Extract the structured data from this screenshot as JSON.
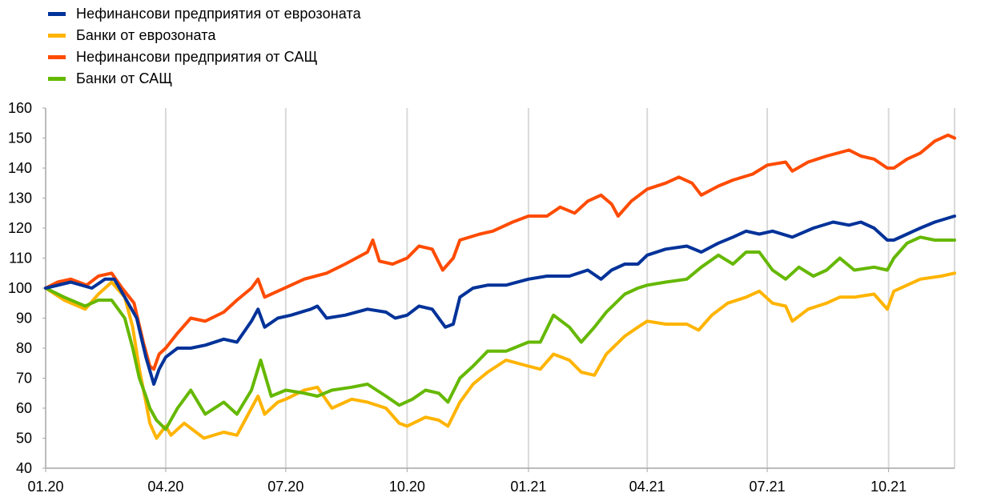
{
  "chart_data": {
    "type": "line",
    "title": "",
    "xlabel": "",
    "ylabel": "",
    "ylim": [
      40,
      160
    ],
    "yticks": [
      40,
      50,
      60,
      70,
      80,
      90,
      100,
      110,
      120,
      130,
      140,
      150,
      160
    ],
    "x_range": [
      "2020-01-01",
      "2021-11-20"
    ],
    "x_ticks": [
      {
        "date": "2020-01-01",
        "label": "01.20"
      },
      {
        "date": "2020-04-01",
        "label": "04.20"
      },
      {
        "date": "2020-07-01",
        "label": "07.20"
      },
      {
        "date": "2020-10-01",
        "label": "10.20"
      },
      {
        "date": "2021-01-01",
        "label": "01.21"
      },
      {
        "date": "2021-04-01",
        "label": "04.21"
      },
      {
        "date": "2021-07-01",
        "label": "07.21"
      },
      {
        "date": "2021-10-01",
        "label": "10.21"
      }
    ],
    "grid": "vertical",
    "legend_position": "top-left",
    "series": [
      {
        "name": "Нефинансови предприятия от еврозоната",
        "color": "#003299",
        "points": [
          [
            "2020-01-01",
            100
          ],
          [
            "2020-01-20",
            102
          ],
          [
            "2020-02-05",
            100
          ],
          [
            "2020-02-15",
            103
          ],
          [
            "2020-02-22",
            103
          ],
          [
            "2020-03-01",
            97
          ],
          [
            "2020-03-10",
            90
          ],
          [
            "2020-03-17",
            77
          ],
          [
            "2020-03-23",
            68
          ],
          [
            "2020-03-27",
            73
          ],
          [
            "2020-04-01",
            77
          ],
          [
            "2020-04-10",
            80
          ],
          [
            "2020-04-20",
            80
          ],
          [
            "2020-05-01",
            81
          ],
          [
            "2020-05-15",
            83
          ],
          [
            "2020-05-25",
            82
          ],
          [
            "2020-06-05",
            89
          ],
          [
            "2020-06-10",
            93
          ],
          [
            "2020-06-15",
            87
          ],
          [
            "2020-06-25",
            90
          ],
          [
            "2020-07-05",
            91
          ],
          [
            "2020-07-20",
            93
          ],
          [
            "2020-07-25",
            94
          ],
          [
            "2020-08-01",
            90
          ],
          [
            "2020-08-15",
            91
          ],
          [
            "2020-09-01",
            93
          ],
          [
            "2020-09-15",
            92
          ],
          [
            "2020-09-22",
            90
          ],
          [
            "2020-10-01",
            91
          ],
          [
            "2020-10-10",
            94
          ],
          [
            "2020-10-20",
            93
          ],
          [
            "2020-10-30",
            87
          ],
          [
            "2020-11-05",
            88
          ],
          [
            "2020-11-10",
            97
          ],
          [
            "2020-11-20",
            100
          ],
          [
            "2020-12-01",
            101
          ],
          [
            "2020-12-15",
            101
          ],
          [
            "2021-01-01",
            103
          ],
          [
            "2021-01-15",
            104
          ],
          [
            "2021-02-01",
            104
          ],
          [
            "2021-02-15",
            106
          ],
          [
            "2021-02-25",
            103
          ],
          [
            "2021-03-05",
            106
          ],
          [
            "2021-03-15",
            108
          ],
          [
            "2021-03-25",
            108
          ],
          [
            "2021-04-01",
            111
          ],
          [
            "2021-04-15",
            113
          ],
          [
            "2021-05-01",
            114
          ],
          [
            "2021-05-12",
            112
          ],
          [
            "2021-05-25",
            115
          ],
          [
            "2021-06-05",
            117
          ],
          [
            "2021-06-15",
            119
          ],
          [
            "2021-06-25",
            118
          ],
          [
            "2021-07-05",
            119
          ],
          [
            "2021-07-20",
            117
          ],
          [
            "2021-08-05",
            120
          ],
          [
            "2021-08-20",
            122
          ],
          [
            "2021-09-01",
            121
          ],
          [
            "2021-09-10",
            122
          ],
          [
            "2021-09-20",
            120
          ],
          [
            "2021-09-30",
            116
          ],
          [
            "2021-10-05",
            116
          ],
          [
            "2021-10-15",
            118
          ],
          [
            "2021-10-25",
            120
          ],
          [
            "2021-11-05",
            122
          ],
          [
            "2021-11-20",
            124
          ]
        ]
      },
      {
        "name": "Банки от еврозоната",
        "color": "#ffb400",
        "points": [
          [
            "2020-01-01",
            100
          ],
          [
            "2020-01-15",
            96
          ],
          [
            "2020-01-31",
            93
          ],
          [
            "2020-02-10",
            98
          ],
          [
            "2020-02-20",
            102
          ],
          [
            "2020-03-01",
            97
          ],
          [
            "2020-03-07",
            87
          ],
          [
            "2020-03-12",
            73
          ],
          [
            "2020-03-17",
            62
          ],
          [
            "2020-03-20",
            55
          ],
          [
            "2020-03-25",
            50
          ],
          [
            "2020-04-01",
            54
          ],
          [
            "2020-04-05",
            51
          ],
          [
            "2020-04-15",
            55
          ],
          [
            "2020-04-30",
            50
          ],
          [
            "2020-05-15",
            52
          ],
          [
            "2020-05-25",
            51
          ],
          [
            "2020-06-05",
            60
          ],
          [
            "2020-06-10",
            64
          ],
          [
            "2020-06-15",
            58
          ],
          [
            "2020-06-25",
            62
          ],
          [
            "2020-07-01",
            63
          ],
          [
            "2020-07-15",
            66
          ],
          [
            "2020-07-25",
            67
          ],
          [
            "2020-08-05",
            60
          ],
          [
            "2020-08-20",
            63
          ],
          [
            "2020-09-01",
            62
          ],
          [
            "2020-09-15",
            60
          ],
          [
            "2020-09-25",
            55
          ],
          [
            "2020-10-01",
            54
          ],
          [
            "2020-10-15",
            57
          ],
          [
            "2020-10-25",
            56
          ],
          [
            "2020-11-01",
            54
          ],
          [
            "2020-11-10",
            62
          ],
          [
            "2020-11-20",
            68
          ],
          [
            "2020-12-01",
            72
          ],
          [
            "2020-12-15",
            76
          ],
          [
            "2021-01-01",
            74
          ],
          [
            "2021-01-10",
            73
          ],
          [
            "2021-01-20",
            78
          ],
          [
            "2021-02-01",
            76
          ],
          [
            "2021-02-10",
            72
          ],
          [
            "2021-02-20",
            71
          ],
          [
            "2021-03-01",
            78
          ],
          [
            "2021-03-15",
            84
          ],
          [
            "2021-03-25",
            87
          ],
          [
            "2021-04-01",
            89
          ],
          [
            "2021-04-15",
            88
          ],
          [
            "2021-05-01",
            88
          ],
          [
            "2021-05-10",
            86
          ],
          [
            "2021-05-20",
            91
          ],
          [
            "2021-06-01",
            95
          ],
          [
            "2021-06-15",
            97
          ],
          [
            "2021-06-25",
            99
          ],
          [
            "2021-07-05",
            95
          ],
          [
            "2021-07-15",
            94
          ],
          [
            "2021-07-20",
            89
          ],
          [
            "2021-08-01",
            93
          ],
          [
            "2021-08-15",
            95
          ],
          [
            "2021-08-25",
            97
          ],
          [
            "2021-09-05",
            97
          ],
          [
            "2021-09-20",
            98
          ],
          [
            "2021-09-30",
            93
          ],
          [
            "2021-10-05",
            99
          ],
          [
            "2021-10-15",
            101
          ],
          [
            "2021-10-25",
            103
          ],
          [
            "2021-11-10",
            104
          ],
          [
            "2021-11-20",
            105
          ]
        ]
      },
      {
        "name": "Нефинансови предприятия от САЩ",
        "color": "#ff4b00",
        "points": [
          [
            "2020-01-01",
            100
          ],
          [
            "2020-01-10",
            102
          ],
          [
            "2020-01-20",
            103
          ],
          [
            "2020-02-01",
            101
          ],
          [
            "2020-02-10",
            104
          ],
          [
            "2020-02-20",
            105
          ],
          [
            "2020-02-28",
            100
          ],
          [
            "2020-03-08",
            95
          ],
          [
            "2020-03-15",
            82
          ],
          [
            "2020-03-20",
            74
          ],
          [
            "2020-03-23",
            73
          ],
          [
            "2020-03-27",
            78
          ],
          [
            "2020-04-01",
            80
          ],
          [
            "2020-04-10",
            85
          ],
          [
            "2020-04-20",
            90
          ],
          [
            "2020-05-01",
            89
          ],
          [
            "2020-05-15",
            92
          ],
          [
            "2020-05-25",
            96
          ],
          [
            "2020-06-05",
            100
          ],
          [
            "2020-06-10",
            103
          ],
          [
            "2020-06-15",
            97
          ],
          [
            "2020-06-25",
            99
          ],
          [
            "2020-07-05",
            101
          ],
          [
            "2020-07-15",
            103
          ],
          [
            "2020-08-01",
            105
          ],
          [
            "2020-08-15",
            108
          ],
          [
            "2020-09-01",
            112
          ],
          [
            "2020-09-05",
            116
          ],
          [
            "2020-09-10",
            109
          ],
          [
            "2020-09-20",
            108
          ],
          [
            "2020-10-01",
            110
          ],
          [
            "2020-10-10",
            114
          ],
          [
            "2020-10-20",
            113
          ],
          [
            "2020-10-28",
            106
          ],
          [
            "2020-11-05",
            110
          ],
          [
            "2020-11-10",
            116
          ],
          [
            "2020-11-25",
            118
          ],
          [
            "2020-12-05",
            119
          ],
          [
            "2020-12-20",
            122
          ],
          [
            "2021-01-01",
            124
          ],
          [
            "2021-01-15",
            124
          ],
          [
            "2021-01-25",
            127
          ],
          [
            "2021-02-05",
            125
          ],
          [
            "2021-02-15",
            129
          ],
          [
            "2021-02-25",
            131
          ],
          [
            "2021-03-05",
            128
          ],
          [
            "2021-03-10",
            124
          ],
          [
            "2021-03-20",
            129
          ],
          [
            "2021-04-01",
            133
          ],
          [
            "2021-04-15",
            135
          ],
          [
            "2021-04-25",
            137
          ],
          [
            "2021-05-05",
            135
          ],
          [
            "2021-05-12",
            131
          ],
          [
            "2021-05-25",
            134
          ],
          [
            "2021-06-05",
            136
          ],
          [
            "2021-06-20",
            138
          ],
          [
            "2021-07-01",
            141
          ],
          [
            "2021-07-15",
            142
          ],
          [
            "2021-07-20",
            139
          ],
          [
            "2021-08-01",
            142
          ],
          [
            "2021-08-15",
            144
          ],
          [
            "2021-09-01",
            146
          ],
          [
            "2021-09-10",
            144
          ],
          [
            "2021-09-20",
            143
          ],
          [
            "2021-09-30",
            140
          ],
          [
            "2021-10-05",
            140
          ],
          [
            "2021-10-15",
            143
          ],
          [
            "2021-10-25",
            145
          ],
          [
            "2021-11-05",
            149
          ],
          [
            "2021-11-15",
            151
          ],
          [
            "2021-11-20",
            150
          ]
        ]
      },
      {
        "name": "Банки от САЩ",
        "color": "#65b800",
        "points": [
          [
            "2020-01-01",
            100
          ],
          [
            "2020-01-15",
            97
          ],
          [
            "2020-01-31",
            94
          ],
          [
            "2020-02-10",
            96
          ],
          [
            "2020-02-20",
            96
          ],
          [
            "2020-03-01",
            90
          ],
          [
            "2020-03-07",
            80
          ],
          [
            "2020-03-12",
            70
          ],
          [
            "2020-03-17",
            64
          ],
          [
            "2020-03-20",
            60
          ],
          [
            "2020-03-25",
            56
          ],
          [
            "2020-04-01",
            53
          ],
          [
            "2020-04-10",
            60
          ],
          [
            "2020-04-20",
            66
          ],
          [
            "2020-05-01",
            58
          ],
          [
            "2020-05-15",
            62
          ],
          [
            "2020-05-25",
            58
          ],
          [
            "2020-06-05",
            66
          ],
          [
            "2020-06-12",
            76
          ],
          [
            "2020-06-20",
            64
          ],
          [
            "2020-07-01",
            66
          ],
          [
            "2020-07-15",
            65
          ],
          [
            "2020-07-25",
            64
          ],
          [
            "2020-08-05",
            66
          ],
          [
            "2020-08-20",
            67
          ],
          [
            "2020-09-01",
            68
          ],
          [
            "2020-09-15",
            64
          ],
          [
            "2020-09-25",
            61
          ],
          [
            "2020-10-05",
            63
          ],
          [
            "2020-10-15",
            66
          ],
          [
            "2020-10-25",
            65
          ],
          [
            "2020-11-01",
            62
          ],
          [
            "2020-11-10",
            70
          ],
          [
            "2020-11-20",
            74
          ],
          [
            "2020-12-01",
            79
          ],
          [
            "2020-12-15",
            79
          ],
          [
            "2021-01-01",
            82
          ],
          [
            "2021-01-10",
            82
          ],
          [
            "2021-01-20",
            91
          ],
          [
            "2021-02-01",
            87
          ],
          [
            "2021-02-10",
            82
          ],
          [
            "2021-02-20",
            87
          ],
          [
            "2021-03-01",
            92
          ],
          [
            "2021-03-15",
            98
          ],
          [
            "2021-03-25",
            100
          ],
          [
            "2021-04-01",
            101
          ],
          [
            "2021-04-15",
            102
          ],
          [
            "2021-05-01",
            103
          ],
          [
            "2021-05-12",
            107
          ],
          [
            "2021-05-25",
            111
          ],
          [
            "2021-06-05",
            108
          ],
          [
            "2021-06-15",
            112
          ],
          [
            "2021-06-25",
            112
          ],
          [
            "2021-07-05",
            106
          ],
          [
            "2021-07-15",
            103
          ],
          [
            "2021-07-25",
            107
          ],
          [
            "2021-08-05",
            104
          ],
          [
            "2021-08-15",
            106
          ],
          [
            "2021-08-25",
            110
          ],
          [
            "2021-09-05",
            106
          ],
          [
            "2021-09-20",
            107
          ],
          [
            "2021-09-30",
            106
          ],
          [
            "2021-10-05",
            110
          ],
          [
            "2021-10-15",
            115
          ],
          [
            "2021-10-25",
            117
          ],
          [
            "2021-11-05",
            116
          ],
          [
            "2021-11-20",
            116
          ]
        ]
      }
    ]
  }
}
